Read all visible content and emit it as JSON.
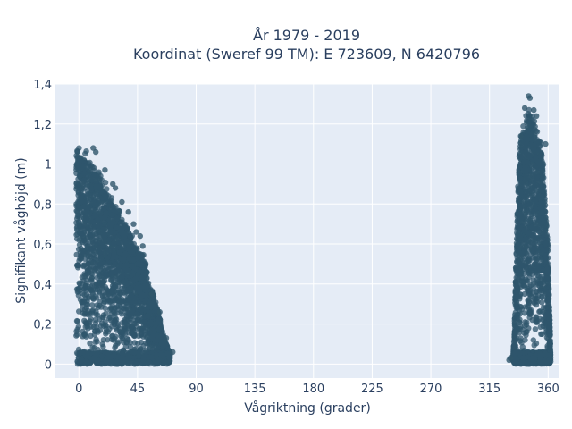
{
  "chart_data": {
    "type": "scatter",
    "title_line1": "År 1979 - 2019",
    "title_line2": "Koordinat (Sweref 99 TM): E 723609, N 6420796",
    "xlabel": "Vågriktning (grader)",
    "ylabel": "Signifikant våghöjd (m)",
    "xlim": [
      -18,
      368
    ],
    "ylim": [
      -0.07,
      1.4
    ],
    "x_ticks": [
      {
        "value": 0,
        "label": "0"
      },
      {
        "value": 45,
        "label": "45"
      },
      {
        "value": 90,
        "label": "90"
      },
      {
        "value": 135,
        "label": "135"
      },
      {
        "value": 180,
        "label": "180"
      },
      {
        "value": 225,
        "label": "225"
      },
      {
        "value": 270,
        "label": "270"
      },
      {
        "value": 315,
        "label": "315"
      },
      {
        "value": 360,
        "label": "360"
      }
    ],
    "y_ticks": [
      {
        "value": 0,
        "label": "0"
      },
      {
        "value": 0.2,
        "label": "0,2"
      },
      {
        "value": 0.4,
        "label": "0,4"
      },
      {
        "value": 0.6,
        "label": "0,6"
      },
      {
        "value": 0.8,
        "label": "0,8"
      },
      {
        "value": 1.0,
        "label": "1"
      },
      {
        "value": 1.2,
        "label": "1,2"
      },
      {
        "value": 1.4,
        "label": "1,4"
      }
    ],
    "grid": true,
    "colors": {
      "plot_bg": "#e5ecf6",
      "grid": "#ffffff",
      "marker": "#2f566c"
    },
    "clusters": [
      {
        "envelope": [
          [
            -2,
            1.09
          ],
          [
            0,
            1.1
          ],
          [
            5,
            1.08
          ],
          [
            10,
            1.02
          ],
          [
            15,
            0.98
          ],
          [
            20,
            0.92
          ],
          [
            25,
            0.86
          ],
          [
            30,
            0.8
          ],
          [
            35,
            0.72
          ],
          [
            40,
            0.66
          ],
          [
            45,
            0.58
          ],
          [
            50,
            0.55
          ],
          [
            55,
            0.4
          ],
          [
            60,
            0.3
          ],
          [
            63,
            0.2
          ],
          [
            66,
            0.12
          ],
          [
            70,
            0.06
          ]
        ],
        "outliers": [
          [
            11,
            1.08
          ],
          [
            13,
            1.06
          ],
          [
            20,
            0.97
          ],
          [
            26,
            0.9
          ],
          [
            28,
            0.88
          ],
          [
            33,
            0.81
          ],
          [
            38,
            0.76
          ],
          [
            42,
            0.7
          ],
          [
            44,
            0.66
          ],
          [
            47,
            0.64
          ],
          [
            49,
            0.59
          ],
          [
            56,
            0.35
          ],
          [
            62,
            0.26
          ],
          [
            67,
            0.13
          ],
          [
            72,
            0.06
          ]
        ]
      },
      {
        "envelope": [
          [
            333,
            0.02
          ],
          [
            334,
            0.15
          ],
          [
            335,
            0.45
          ],
          [
            336,
            0.7
          ],
          [
            337,
            0.95
          ],
          [
            338,
            1.1
          ],
          [
            340,
            1.2
          ],
          [
            342,
            1.24
          ],
          [
            344,
            1.27
          ],
          [
            345,
            1.3
          ],
          [
            347,
            1.29
          ],
          [
            349,
            1.24
          ],
          [
            351,
            1.2
          ],
          [
            353,
            1.16
          ],
          [
            355,
            1.12
          ],
          [
            356,
            1.08
          ],
          [
            357,
            0.95
          ],
          [
            358,
            0.8
          ],
          [
            360,
            0.6
          ],
          [
            361,
            0.3
          ],
          [
            362,
            0.05
          ]
        ],
        "outliers": [
          [
            330,
            0.02
          ],
          [
            331,
            0.03
          ],
          [
            345,
            1.34
          ],
          [
            346,
            1.33
          ],
          [
            342,
            1.28
          ],
          [
            349,
            1.27
          ],
          [
            351,
            1.24
          ],
          [
            339,
            1.14
          ],
          [
            358,
            1.1
          ]
        ]
      }
    ]
  }
}
